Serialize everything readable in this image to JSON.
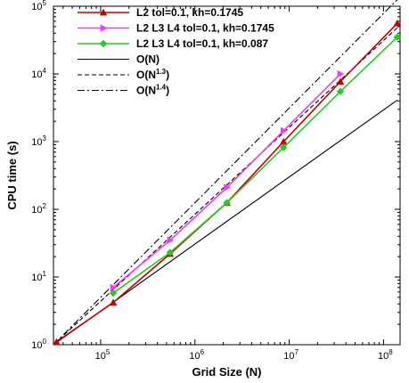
{
  "chart_data": {
    "type": "line",
    "xlabel": "Grid Size (N)",
    "ylabel": "CPU time (s)",
    "x_scale": "log",
    "y_scale": "log",
    "xlim": [
      31600,
      150000000
    ],
    "ylim": [
      1,
      100000
    ],
    "x_tick_labels": [
      {
        "value": 100000,
        "mantissa": "10",
        "exp": "5"
      },
      {
        "value": 1000000,
        "mantissa": "10",
        "exp": "6"
      },
      {
        "value": 10000000,
        "mantissa": "10",
        "exp": "7"
      },
      {
        "value": 100000000,
        "mantissa": "10",
        "exp": "8"
      }
    ],
    "y_tick_labels": [
      {
        "value": 1,
        "mantissa": "10",
        "exp": "0"
      },
      {
        "value": 10,
        "mantissa": "10",
        "exp": "1"
      },
      {
        "value": 100,
        "mantissa": "10",
        "exp": "2"
      },
      {
        "value": 1000,
        "mantissa": "10",
        "exp": "3"
      },
      {
        "value": 10000,
        "mantissa": "10",
        "exp": "4"
      },
      {
        "value": 100000,
        "mantissa": "10",
        "exp": "5"
      }
    ],
    "grid": false,
    "legend_position": "top-left",
    "series": [
      {
        "name": "L2 tol=0.1, kh=0.1745",
        "color": "#c00000",
        "marker": "triangle",
        "x": [
          34000,
          136000,
          545000,
          2180000,
          8720000,
          34900000,
          140000000
        ],
        "y": [
          1.1,
          4.2,
          22,
          125,
          1000,
          7700,
          56000
        ]
      },
      {
        "name": "L2 L3 L4 tol=0.1, kh=0.1745",
        "color": "#ff33ff",
        "marker": "triangle-right",
        "x": [
          136000,
          545000,
          2180000,
          8720000,
          34900000
        ],
        "y": [
          7.0,
          35,
          210,
          1450,
          10000
        ]
      },
      {
        "name": "L2 L3 L4 tol=0.1, kh=0.087",
        "color": "#22cc22",
        "marker": "diamond",
        "x": [
          136000,
          545000,
          2180000,
          8720000,
          34900000,
          140000000
        ],
        "y": [
          5.8,
          23,
          125,
          820,
          5500,
          35000
        ]
      },
      {
        "name_base": "O(N)",
        "name_exp": "",
        "color": "#000000",
        "dash": "solid",
        "x": [
          31600,
          140000000
        ],
        "y": [
          1.0,
          4100
        ]
      },
      {
        "name_base": "O(N",
        "name_exp": "1.3",
        "name_tail": ")",
        "color": "#000000",
        "dash": "dashed",
        "x": [
          31600,
          140000000
        ],
        "y": [
          1.0,
          48000
        ]
      },
      {
        "name_base": "O(N",
        "name_exp": "1.4",
        "name_tail": ")",
        "color": "#000000",
        "dash": "dashdot",
        "x": [
          31600,
          140000000
        ],
        "y": [
          1.0,
          125000
        ]
      }
    ]
  }
}
